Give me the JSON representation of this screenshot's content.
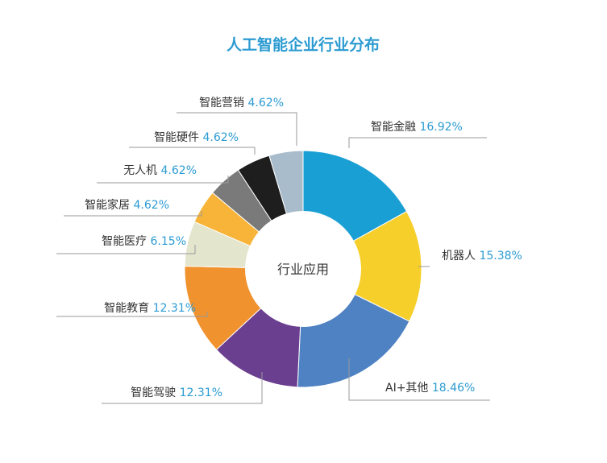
{
  "chart_data": {
    "type": "pie",
    "title": "人工智能企业行业分布",
    "center_label": "行业应用",
    "slices": [
      {
        "name": "智能金融",
        "value": 16.92,
        "value_label": "16.92%",
        "color": "#1a9fd4"
      },
      {
        "name": "机器人",
        "value": 15.38,
        "value_label": "15.38%",
        "color": "#f6cf2a"
      },
      {
        "name": "AI+其他",
        "value": 18.46,
        "value_label": "18.46%",
        "color": "#4f82c3"
      },
      {
        "name": "智能驾驶",
        "value": 12.31,
        "value_label": "12.31%",
        "color": "#6b3f8f"
      },
      {
        "name": "智能教育",
        "value": 12.31,
        "value_label": "12.31%",
        "color": "#f0922d"
      },
      {
        "name": "智能医疗",
        "value": 6.15,
        "value_label": "6.15%",
        "color": "#e3e5cd"
      },
      {
        "name": "智能家居",
        "value": 4.62,
        "value_label": "4.62%",
        "color": "#f7b438"
      },
      {
        "name": "无人机",
        "value": 4.62,
        "value_label": "4.62%",
        "color": "#7a7a7a"
      },
      {
        "name": "智能硬件",
        "value": 4.62,
        "value_label": "4.62%",
        "color": "#1e1e1e"
      },
      {
        "name": "智能营销",
        "value": 4.62,
        "value_label": "4.62%",
        "color": "#a9bccb"
      }
    ],
    "legend": "none",
    "colors": {
      "title": "#2b9bd2",
      "percent": "#2b9bd2",
      "text": "#333333"
    }
  }
}
